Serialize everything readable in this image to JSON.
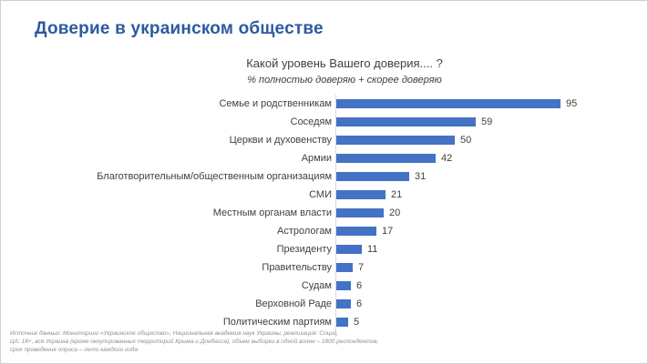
{
  "page": {
    "title": "Доверие в украинском обществе",
    "question": "Какой уровень Вашего доверия.... ?",
    "subquestion": "% полностью доверяю + скорее доверяю",
    "footer_lines": [
      "Источник данных: Мониторинг «Украинское общество», Национальная академия наук Украины, реализация: Социс,",
      "ЦА: 18+, вся Украина (кроме оккупированных территорий Крыма и Донбасса), объем выборки в одной волне – 1800 респондентов,",
      "срок проведения опроса – лето каждого года"
    ]
  },
  "colors": {
    "title": "#2c5aa0",
    "bar": "#4472c4",
    "text": "#3f3f3f",
    "footer": "#8f8f8f"
  },
  "chart_data": {
    "type": "bar",
    "orientation": "horizontal",
    "title": "Какой уровень Вашего доверия.... ?",
    "subtitle": "% полностью доверяю + скорее доверяю",
    "categories": [
      "Семье и родственникам",
      "Соседям",
      "Церкви и духовенству",
      "Армии",
      "Благотворительным/общественным  организациям",
      "СМИ",
      "Местным органам власти",
      "Астрологам",
      "Президенту",
      "Правительству",
      "Судам",
      "Верховной Раде",
      "Политическим партиям"
    ],
    "values": [
      95,
      59,
      50,
      42,
      31,
      21,
      20,
      17,
      11,
      7,
      6,
      6,
      5
    ],
    "xlim": [
      0,
      100
    ],
    "data_labels": true,
    "grid": false,
    "legend": false,
    "sorted": "descending"
  }
}
